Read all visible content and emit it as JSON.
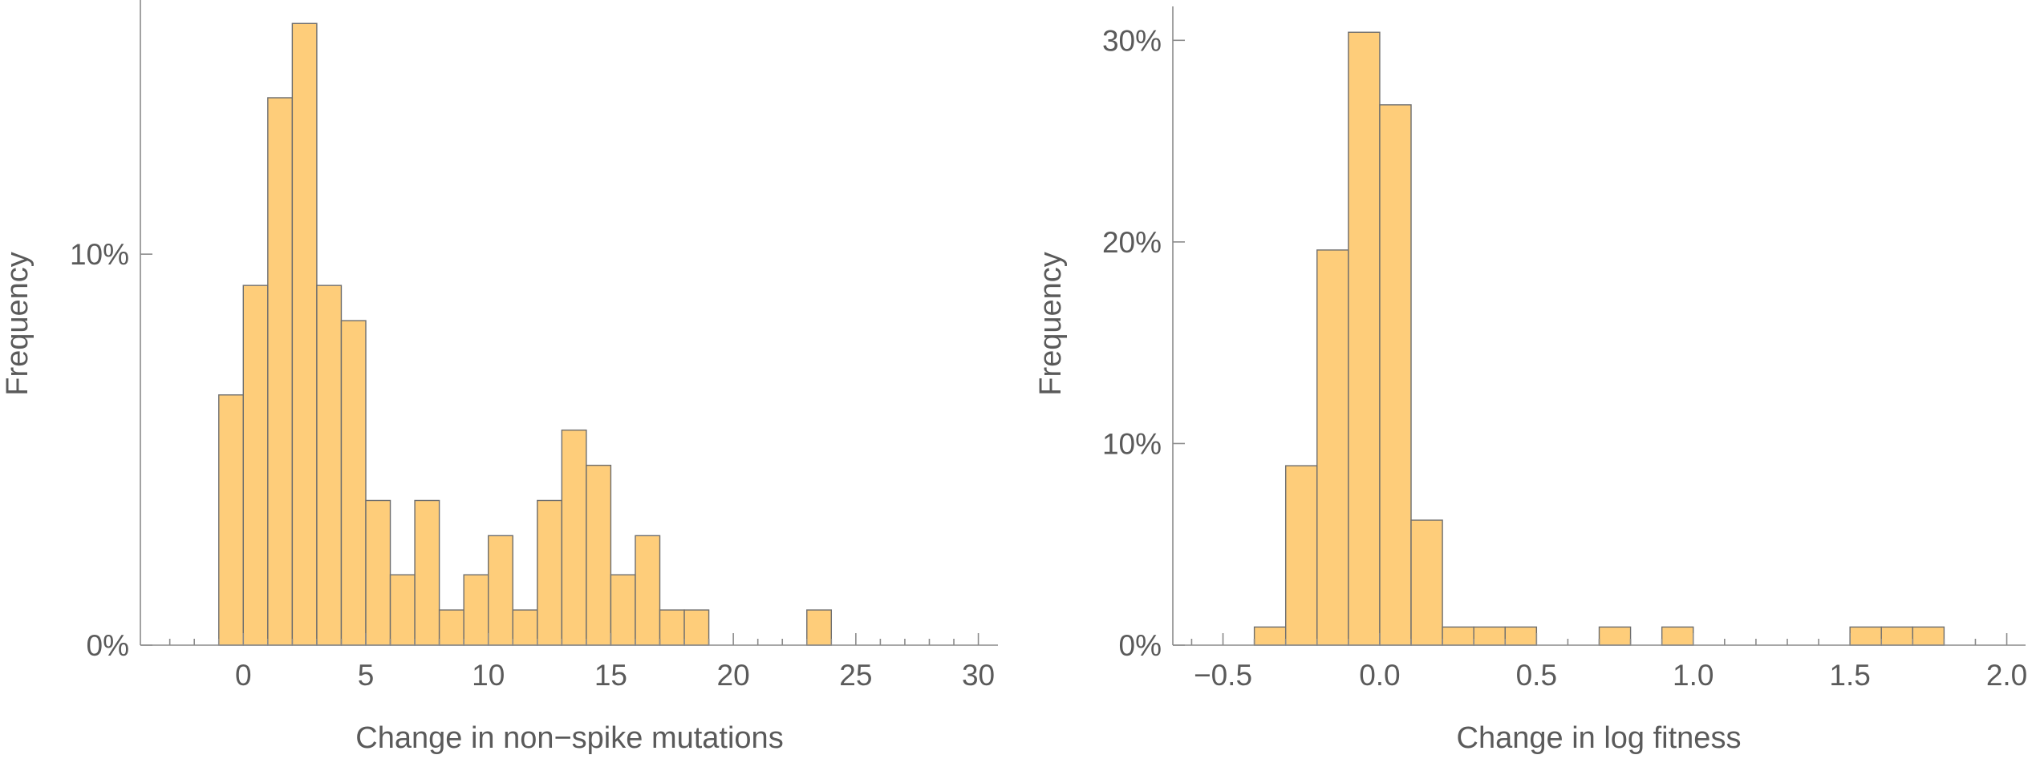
{
  "chart_data": [
    {
      "type": "bar",
      "chart_id": "mutations-histogram",
      "xlabel": "Change in non−spike mutations",
      "ylabel": "Frequency",
      "bin_width": 1,
      "bins_start": [
        -1,
        0,
        1,
        2,
        3,
        4,
        5,
        6,
        7,
        8,
        9,
        10,
        11,
        12,
        13,
        14,
        15,
        16,
        17,
        18,
        23
      ],
      "values": [
        6.4,
        9.2,
        14.0,
        15.9,
        9.2,
        8.3,
        3.7,
        1.8,
        3.7,
        0.9,
        1.8,
        2.8,
        0.9,
        3.7,
        5.5,
        4.6,
        1.8,
        2.8,
        0.9,
        0.9,
        0.9
      ],
      "xlim": [
        -4.2,
        30.8
      ],
      "ylim": [
        0,
        16.5
      ],
      "x_major_ticks": [
        0,
        5,
        10,
        15,
        20,
        25,
        30
      ],
      "x_tick_labels": [
        "0",
        "5",
        "10",
        "15",
        "20",
        "25",
        "30"
      ],
      "y_major_ticks": [
        0,
        10
      ],
      "y_tick_labels": [
        "0%",
        "10%"
      ],
      "y_unit": "%",
      "grid": false,
      "bar_color": "#fecd7a",
      "edge_color": "#6e6e6e"
    },
    {
      "type": "bar",
      "chart_id": "fitness-histogram",
      "xlabel": "Change in log fitness",
      "ylabel": "Frequency",
      "bin_width": 0.1,
      "bins_start": [
        -0.4,
        -0.3,
        -0.2,
        -0.1,
        0.0,
        0.1,
        0.2,
        0.3,
        0.4,
        0.7,
        0.9,
        1.5,
        1.6,
        1.7
      ],
      "values": [
        0.9,
        8.9,
        19.6,
        30.4,
        26.8,
        6.2,
        0.9,
        0.9,
        0.9,
        0.9,
        0.9,
        0.9,
        0.9,
        0.9
      ],
      "xlim": [
        -0.66,
        2.06
      ],
      "ylim": [
        0,
        32
      ],
      "x_major_ticks": [
        -0.5,
        0.0,
        0.5,
        1.0,
        1.5,
        2.0
      ],
      "x_tick_labels": [
        "−0.5",
        "0.0",
        "0.5",
        "1.0",
        "1.5",
        "2.0"
      ],
      "y_major_ticks": [
        0,
        10,
        20,
        30
      ],
      "y_tick_labels": [
        "0%",
        "10%",
        "20%",
        "30%"
      ],
      "y_unit": "%",
      "grid": false,
      "bar_color": "#fecd7a",
      "edge_color": "#6e6e6e"
    }
  ]
}
